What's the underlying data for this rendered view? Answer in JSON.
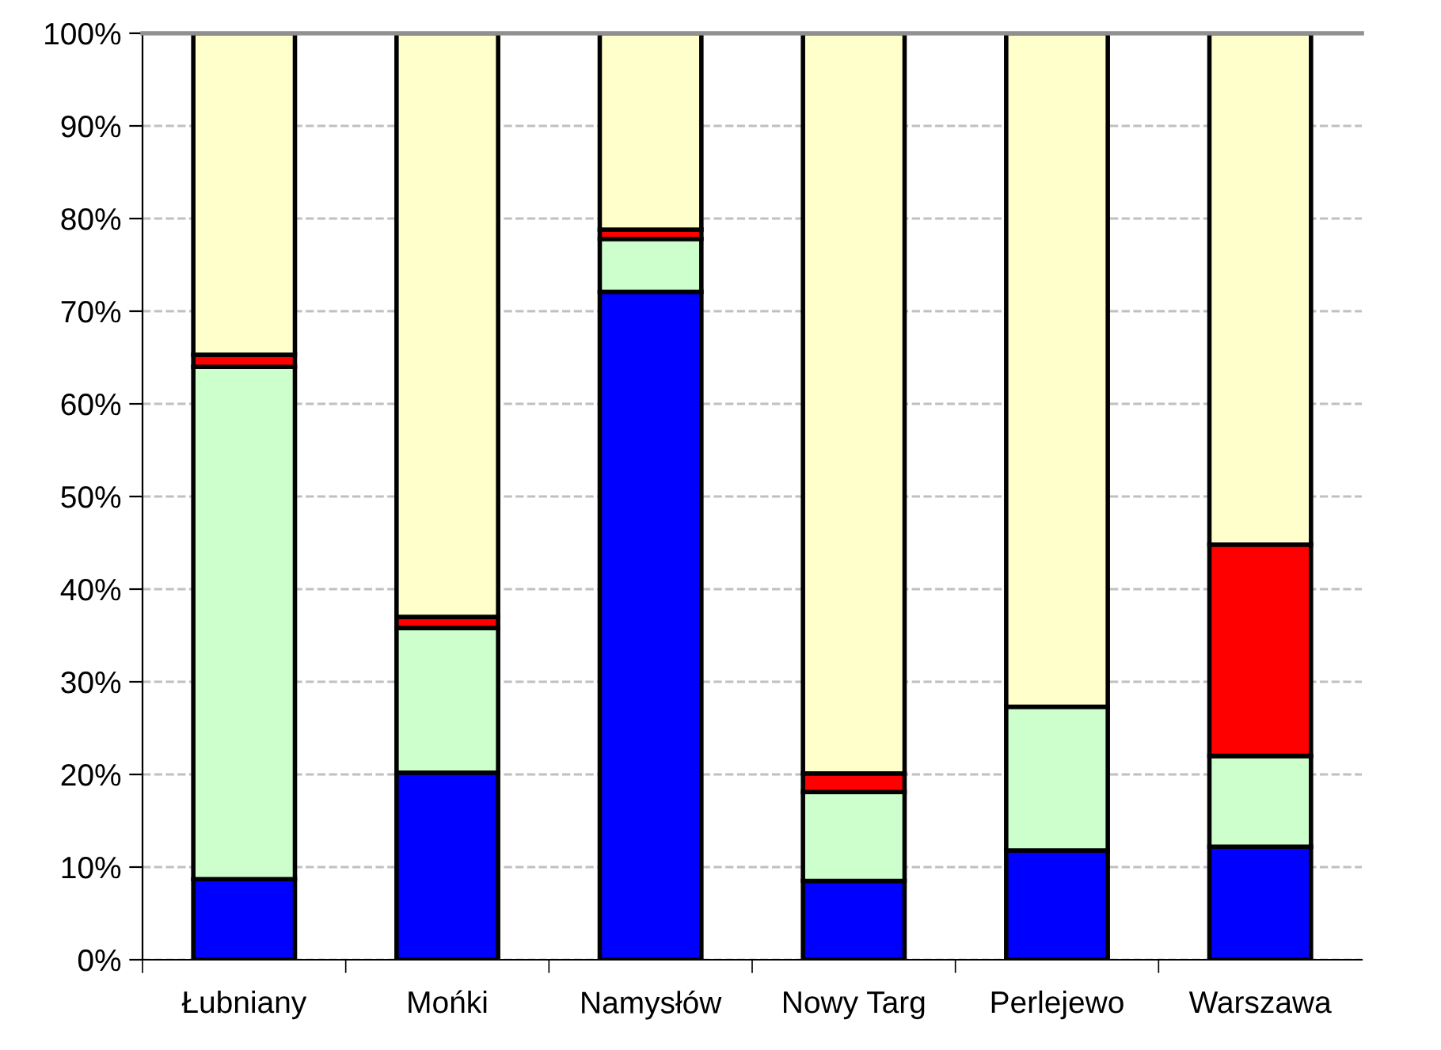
{
  "chart_data": {
    "type": "bar",
    "stacked": true,
    "categories": [
      "Łubniany",
      "Mońki",
      "Namysłów",
      "Nowy Targ",
      "Perlejewo",
      "Warszawa"
    ],
    "series": [
      {
        "color": "#0000ff",
        "values": [
          8.7,
          20.2,
          72.1,
          8.5,
          11.8,
          12.2
        ]
      },
      {
        "color": "#ccffcc",
        "values": [
          55.3,
          15.6,
          5.7,
          9.6,
          15.5,
          9.8
        ]
      },
      {
        "color": "#ff0000",
        "values": [
          1.3,
          1.2,
          1.0,
          2.0,
          0,
          22.8
        ]
      },
      {
        "color": "#ffffcc",
        "values": [
          34.7,
          63.0,
          21.2,
          79.9,
          72.7,
          55.2
        ]
      }
    ],
    "ylim": [
      0,
      100
    ],
    "yticks": [
      {
        "value": 0,
        "label": "0%"
      },
      {
        "value": 10,
        "label": "10%"
      },
      {
        "value": 20,
        "label": "20%"
      },
      {
        "value": 30,
        "label": "30%"
      },
      {
        "value": 40,
        "label": "40%"
      },
      {
        "value": 50,
        "label": "50%"
      },
      {
        "value": 60,
        "label": "60%"
      },
      {
        "value": 70,
        "label": "70%"
      },
      {
        "value": 80,
        "label": "80%"
      },
      {
        "value": 90,
        "label": "90%"
      },
      {
        "value": 100,
        "label": "100%"
      }
    ],
    "grid": "y",
    "legend": false
  }
}
